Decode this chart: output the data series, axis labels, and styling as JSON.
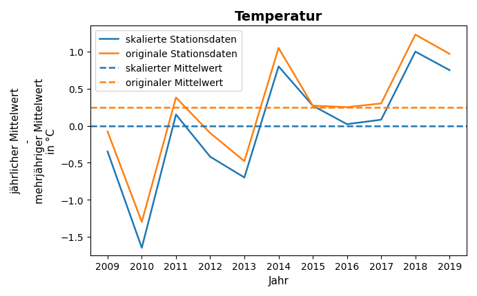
{
  "title": "Temperatur",
  "xlabel": "Jahr",
  "ylabel": "jährlicher Mittelwert\n-\nmehrjähriger Mittelwert\nin °C",
  "years": [
    2009,
    2010,
    2011,
    2012,
    2013,
    2014,
    2015,
    2016,
    2017,
    2018,
    2019
  ],
  "scaled_values": [
    -0.35,
    -1.65,
    0.15,
    -0.42,
    -0.7,
    0.8,
    0.27,
    0.02,
    0.08,
    1.0,
    0.75
  ],
  "original_values": [
    -0.08,
    -1.3,
    0.38,
    -0.1,
    -0.48,
    1.05,
    0.27,
    0.25,
    0.3,
    1.23,
    0.97
  ],
  "scaled_mean": 0.0,
  "original_mean": 0.25,
  "scaled_color": "#1f77b4",
  "original_color": "#ff7f0e",
  "legend_labels": [
    "skalierte Stationsdaten",
    "originale Stationsdaten",
    "skalierter Mittelwert",
    "originaler Mittelwert"
  ],
  "xlim": [
    2008.5,
    2019.5
  ],
  "ylim": [
    -1.75,
    1.35
  ],
  "title_fontsize": 14,
  "axis_label_fontsize": 11,
  "tick_fontsize": 10,
  "legend_fontsize": 10,
  "linewidth": 1.8
}
